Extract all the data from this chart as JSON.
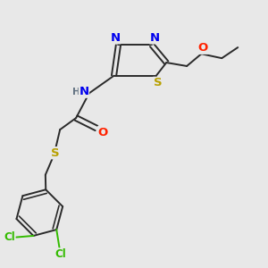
{
  "bg_color": "#e8e8e8",
  "bond_color": "#2a2a2a",
  "atom_colors": {
    "N": "#0000ee",
    "S": "#b8a000",
    "O": "#ff2200",
    "Cl": "#33bb00",
    "C": "#2a2a2a",
    "H": "#607080"
  },
  "font_size": 8.5,
  "bond_width": 1.4,
  "dbo": 0.008
}
